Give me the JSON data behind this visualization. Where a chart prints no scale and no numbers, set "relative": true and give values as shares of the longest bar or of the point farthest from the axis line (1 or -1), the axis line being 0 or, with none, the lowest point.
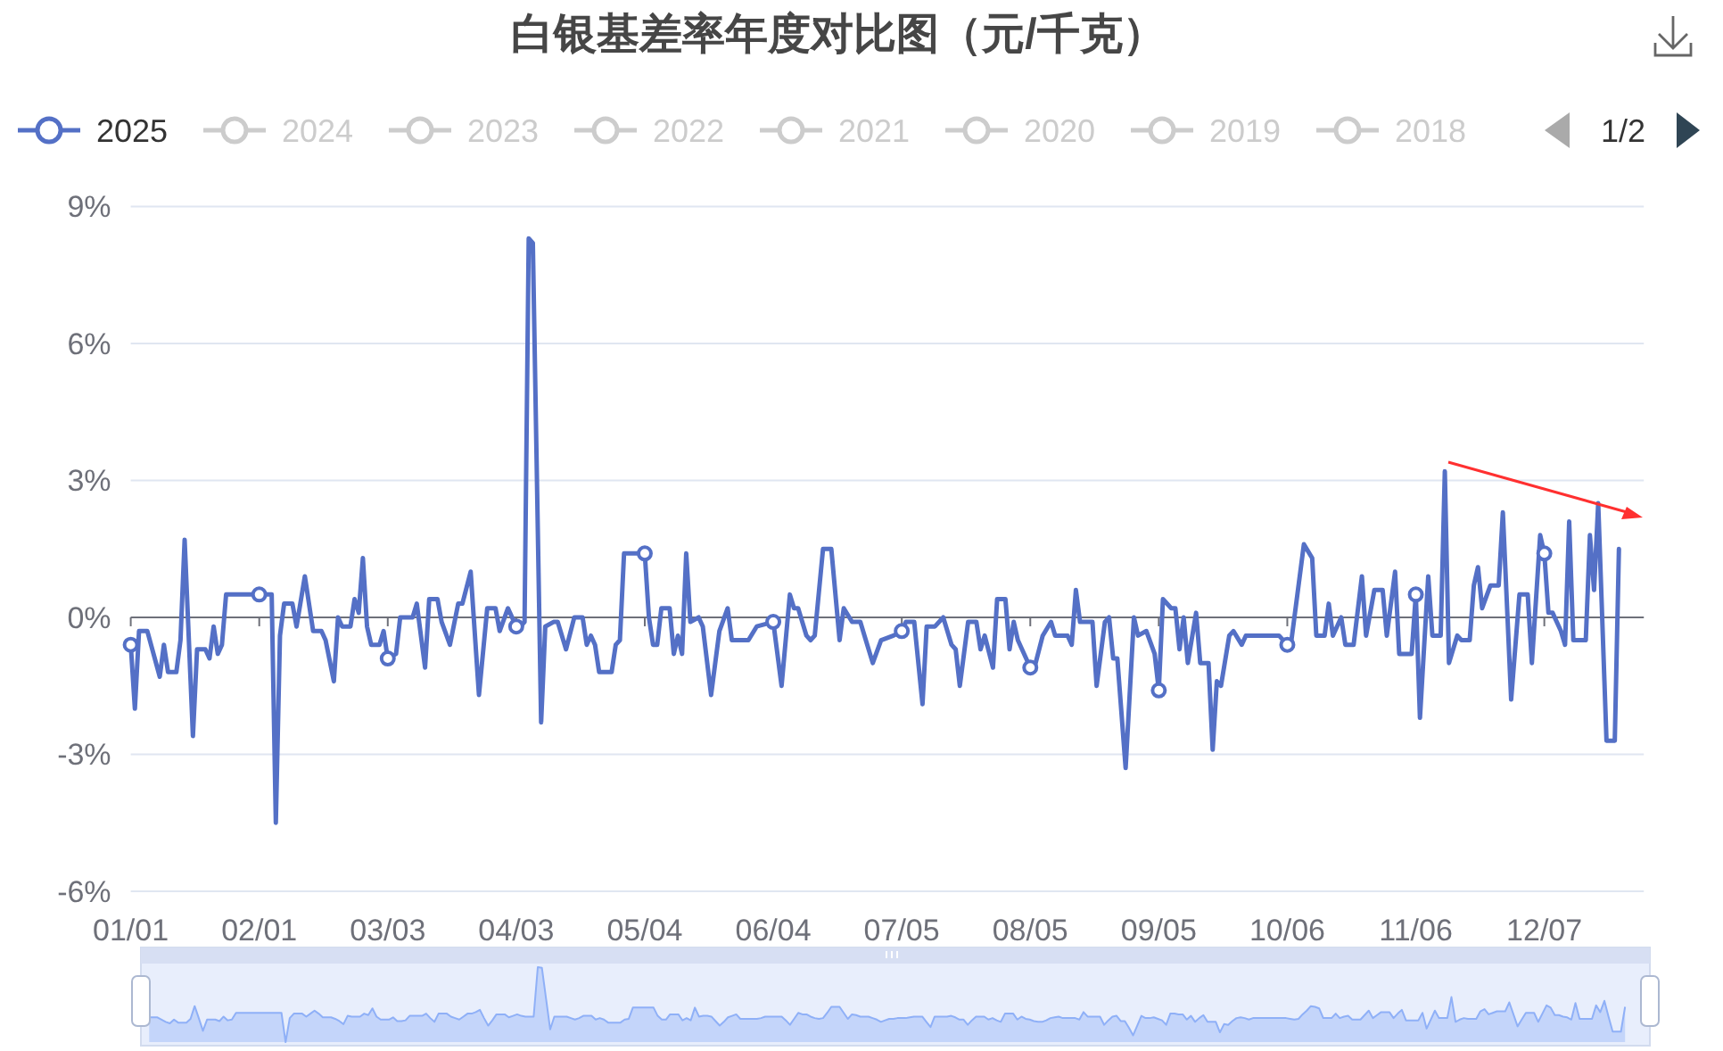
{
  "chart_data": [
    {
      "type": "line",
      "title": "白银基差率年度对比图（元/千克）",
      "xlim": [
        "--01-01",
        "--12-31"
      ],
      "xticks": [
        {
          "value": "--01-01",
          "label": "01/01"
        },
        {
          "value": "--02-01",
          "label": "02/01"
        },
        {
          "value": "--03-03",
          "label": "03/03"
        },
        {
          "value": "--04-03",
          "label": "04/03"
        },
        {
          "value": "--05-04",
          "label": "05/04"
        },
        {
          "value": "--06-04",
          "label": "06/04"
        },
        {
          "value": "--07-05",
          "label": "07/05"
        },
        {
          "value": "--08-05",
          "label": "08/05"
        },
        {
          "value": "--09-05",
          "label": "09/05"
        },
        {
          "value": "--10-06",
          "label": "10/06"
        },
        {
          "value": "--11-06",
          "label": "11/06"
        },
        {
          "value": "--12-07",
          "label": "12/07"
        }
      ],
      "ylim": [
        -6,
        9
      ],
      "yticks": [
        {
          "value": -6,
          "label": "-6%"
        },
        {
          "value": -3,
          "label": "-3%"
        },
        {
          "value": 0,
          "label": "0%"
        },
        {
          "value": 3,
          "label": "3%"
        },
        {
          "value": 6,
          "label": "6%"
        },
        {
          "value": 9,
          "label": "9%"
        }
      ],
      "grid": "y",
      "legend": "top",
      "marker": "circle",
      "series": [
        {
          "name": "2025",
          "color": "#5470c6",
          "marker": "none",
          "x": [
            "--01-01",
            "--01-02",
            "--01-03",
            "--01-05",
            "--01-08",
            "--01-09",
            "--01-10",
            "--01-12",
            "--01-13",
            "--01-14",
            "--01-16",
            "--01-17",
            "--01-19",
            "--01-20",
            "--01-21",
            "--01-22",
            "--01-23",
            "--01-24",
            "--02-01",
            "--02-04",
            "--02-05",
            "--02-06",
            "--02-07",
            "--02-09",
            "--02-10",
            "--02-12",
            "--02-14",
            "--02-16",
            "--02-17",
            "--02-19",
            "--02-20",
            "--02-21",
            "--02-23",
            "--02-24",
            "--02-25",
            "--02-26",
            "--02-27",
            "--02-28",
            "--03-01",
            "--03-02",
            "--03-03",
            "--03-05",
            "--03-06",
            "--03-09",
            "--03-10",
            "--03-12",
            "--03-13",
            "--03-15",
            "--03-16",
            "--03-18",
            "--03-20",
            "--03-21",
            "--03-23",
            "--03-25",
            "--03-27",
            "--03-29",
            "--03-30",
            "--04-01",
            "--04-03",
            "--04-04",
            "--04-05",
            "--04-06",
            "--04-07",
            "--04-09",
            "--04-10",
            "--04-12",
            "--04-13",
            "--04-15",
            "--04-17",
            "--04-19",
            "--04-20",
            "--04-21",
            "--04-22",
            "--04-23",
            "--04-26",
            "--04-27",
            "--04-28",
            "--04-29",
            "--05-02",
            "--05-04",
            "--05-05",
            "--05-06",
            "--05-07",
            "--05-08",
            "--05-10",
            "--05-11",
            "--05-12",
            "--05-13",
            "--05-14",
            "--05-15",
            "--05-17",
            "--05-18",
            "--05-20",
            "--05-22",
            "--05-24",
            "--05-25",
            "--05-29",
            "--05-31",
            "--06-04",
            "--06-06",
            "--06-08",
            "--06-09",
            "--06-10",
            "--06-12",
            "--06-13",
            "--06-14",
            "--06-16",
            "--06-18",
            "--06-20",
            "--06-21",
            "--06-23",
            "--06-25",
            "--06-26",
            "--06-28",
            "--06-30",
            "--07-03",
            "--07-05",
            "--07-06",
            "--07-08",
            "--07-10",
            "--07-11",
            "--07-13",
            "--07-15",
            "--07-17",
            "--07-18",
            "--07-19",
            "--07-21",
            "--07-23",
            "--07-24",
            "--07-25",
            "--07-27",
            "--07-28",
            "--07-30",
            "--07-31",
            "--08-01",
            "--08-02",
            "--08-05",
            "--08-06",
            "--08-08",
            "--08-10",
            "--08-11",
            "--08-14",
            "--08-15",
            "--08-16",
            "--08-17",
            "--08-20",
            "--08-21",
            "--08-23",
            "--08-24",
            "--08-25",
            "--08-26",
            "--08-28",
            "--08-30",
            "--08-31",
            "--09-02",
            "--09-04",
            "--09-05",
            "--09-06",
            "--09-08",
            "--09-09",
            "--09-10",
            "--09-11",
            "--09-12",
            "--09-14",
            "--09-15",
            "--09-17",
            "--09-18",
            "--09-19",
            "--09-20",
            "--09-22",
            "--09-23",
            "--09-25",
            "--09-26",
            "--10-04",
            "--10-06",
            "--10-07",
            "--10-10",
            "--10-12",
            "--10-13",
            "--10-15",
            "--10-16",
            "--10-17",
            "--10-19",
            "--10-20",
            "--10-22",
            "--10-24",
            "--10-25",
            "--10-27",
            "--10-29",
            "--10-30",
            "--11-01",
            "--11-02",
            "--11-05",
            "--11-06",
            "--11-07",
            "--11-09",
            "--11-10",
            "--11-12",
            "--11-13",
            "--11-14",
            "--11-16",
            "--11-17",
            "--11-19",
            "--11-20",
            "--11-21",
            "--11-22",
            "--11-24",
            "--11-26",
            "--11-27",
            "--11-29",
            "--12-01",
            "--12-03",
            "--12-04",
            "--12-06",
            "--12-07",
            "--12-08",
            "--12-09",
            "--12-11",
            "--12-12",
            "--12-13",
            "--12-14",
            "--12-17",
            "--12-18",
            "--12-19",
            "--12-20",
            "--12-22",
            "--12-24",
            "--12-25"
          ],
          "values": [
            -0.6,
            -2.0,
            -0.3,
            -0.3,
            -1.3,
            -0.6,
            -1.2,
            -1.2,
            -0.5,
            1.7,
            -2.6,
            -0.7,
            -0.7,
            -0.9,
            -0.2,
            -0.8,
            -0.6,
            0.5,
            0.5,
            0.5,
            -4.5,
            -0.4,
            0.3,
            0.3,
            -0.2,
            0.9,
            -0.3,
            -0.3,
            -0.5,
            -1.4,
            0.0,
            -0.2,
            -0.2,
            0.4,
            0.1,
            1.3,
            -0.2,
            -0.6,
            -0.6,
            -0.3,
            -0.9,
            -0.8,
            0.0,
            0.0,
            0.3,
            -1.1,
            0.4,
            0.4,
            -0.1,
            -0.6,
            0.3,
            0.3,
            1.0,
            -1.7,
            0.2,
            0.2,
            -0.3,
            0.2,
            -0.2,
            -0.2,
            -0.1,
            8.3,
            8.2,
            -2.3,
            -0.2,
            -0.1,
            -0.1,
            -0.7,
            0.0,
            0.0,
            -0.6,
            -0.4,
            -0.6,
            -1.2,
            -1.2,
            -0.6,
            -0.5,
            1.4,
            1.4,
            1.4,
            0.0,
            -0.6,
            -0.6,
            0.2,
            0.2,
            -0.8,
            -0.4,
            -0.8,
            1.4,
            -0.1,
            0.0,
            -0.2,
            -1.7,
            -0.3,
            0.2,
            -0.5,
            -0.5,
            -0.2,
            -0.1,
            -1.5,
            0.5,
            0.2,
            0.2,
            -0.4,
            -0.5,
            -0.4,
            1.5,
            1.5,
            -0.5,
            0.2,
            -0.1,
            -0.1,
            -0.4,
            -1.0,
            -0.5,
            -0.4,
            -0.3,
            -0.1,
            -0.1,
            -1.9,
            -0.2,
            -0.2,
            0.0,
            -0.6,
            -0.7,
            -1.5,
            -0.1,
            -0.1,
            -0.7,
            -0.4,
            -1.1,
            0.4,
            0.4,
            -0.7,
            -0.1,
            -0.5,
            -1.1,
            -1.1,
            -0.4,
            -0.1,
            -0.4,
            -0.4,
            -0.6,
            0.6,
            -0.1,
            -0.1,
            -1.5,
            -0.1,
            0.0,
            -0.9,
            -0.9,
            -3.3,
            0.0,
            -0.4,
            -0.3,
            -0.8,
            -1.6,
            0.4,
            0.2,
            0.2,
            -0.7,
            0.0,
            -1.0,
            0.1,
            -1.0,
            -1.0,
            -2.9,
            -1.4,
            -1.5,
            -0.4,
            -0.3,
            -0.6,
            -0.4,
            -0.4,
            -0.6,
            -0.5,
            1.6,
            1.3,
            -0.4,
            -0.4,
            0.3,
            -0.4,
            0.0,
            -0.6,
            -0.6,
            0.9,
            -0.4,
            0.6,
            0.6,
            -0.4,
            1.0,
            -0.8,
            -0.8,
            0.5,
            -2.2,
            0.9,
            -0.4,
            -0.4,
            3.2,
            -1.0,
            -0.4,
            -0.5,
            -0.5,
            0.7,
            1.1,
            0.2,
            0.7,
            0.7,
            2.3,
            -1.8,
            0.5,
            0.5,
            -1.0,
            1.8,
            1.4,
            0.1,
            0.1,
            -0.3,
            -0.6,
            2.1,
            -0.5,
            -0.5,
            1.8,
            0.6,
            2.5,
            -2.7,
            -2.7,
            1.5
          ]
        },
        {
          "type": "scatter",
          "color": "#5470c6",
          "x": [
            "--01-01",
            "--02-01",
            "--03-03",
            "--04-03",
            "--05-04",
            "--06-04",
            "--07-05",
            "--08-05",
            "--09-05",
            "--10-06",
            "--11-06",
            "--12-07"
          ],
          "values": [
            -0.6,
            0.5,
            -0.9,
            -0.2,
            1.4,
            -0.1,
            -0.3,
            -1.1,
            -1.6,
            -0.6,
            0.5,
            1.4
          ]
        },
        {
          "name": "2024",
          "color": "#cccccc"
        },
        {
          "name": "2023",
          "color": "#cccccc"
        },
        {
          "name": "2022",
          "color": "#cccccc"
        },
        {
          "name": "2021",
          "color": "#cccccc"
        },
        {
          "name": "2020",
          "color": "#cccccc"
        },
        {
          "name": "2019",
          "color": "#cccccc"
        },
        {
          "name": "2018",
          "color": "#cccccc"
        }
      ],
      "annotations": [
        "1/2"
      ]
    },
    {
      "type": "area",
      "relative": true,
      "color": "#8fb0f7",
      "categories": [
        null,
        null,
        null,
        null,
        null,
        null,
        null,
        null,
        null,
        null,
        null,
        null,
        null,
        null,
        null,
        null,
        null,
        null,
        null,
        null,
        null,
        null,
        null,
        null,
        null,
        null,
        null,
        null,
        null,
        null,
        null,
        null,
        null,
        null,
        null,
        null,
        null,
        null,
        null,
        null,
        null,
        null,
        null,
        null,
        null,
        null,
        null,
        null,
        null,
        null,
        null,
        null,
        null,
        null,
        null,
        null,
        null,
        null,
        null,
        null,
        null,
        null,
        null,
        null,
        null,
        null,
        null,
        null,
        null,
        null,
        null,
        null,
        null,
        null,
        null,
        null,
        null,
        null,
        null,
        null,
        null,
        null,
        null,
        null,
        null,
        null,
        null,
        null,
        null,
        null,
        null,
        null,
        null,
        null,
        null,
        null,
        null,
        null,
        null,
        null,
        null,
        null,
        null,
        null,
        null,
        null,
        null,
        null,
        null,
        null,
        null,
        null,
        null,
        null,
        null,
        null,
        null,
        null,
        null,
        null,
        null,
        null,
        null,
        null,
        null,
        null,
        null,
        null,
        null,
        null,
        null,
        null,
        null,
        null,
        null,
        null,
        null,
        null,
        null,
        null,
        null,
        null,
        null,
        null,
        null,
        null,
        null,
        null,
        null,
        null,
        null,
        null,
        null,
        null,
        null,
        null,
        null,
        null,
        null,
        null,
        null,
        null,
        null,
        null,
        null,
        null,
        null,
        null,
        null,
        null,
        null,
        null,
        null,
        null,
        null,
        null,
        null,
        null,
        null,
        null,
        null,
        null,
        null,
        null,
        null,
        null,
        null,
        null,
        null,
        null,
        null,
        null,
        null,
        null,
        null,
        null,
        null,
        null,
        null,
        null,
        null,
        null,
        null,
        null,
        null,
        null,
        null,
        null,
        null,
        null,
        null,
        null,
        null,
        null,
        null,
        null,
        null,
        null,
        null,
        null,
        null,
        null,
        null,
        null,
        null,
        null,
        null,
        null,
        null,
        null,
        null,
        null,
        null,
        null,
        null,
        null,
        null,
        null,
        null,
        null,
        null,
        null,
        null,
        null,
        null,
        null,
        null,
        null,
        null,
        null,
        null,
        null,
        null,
        null,
        null,
        null,
        null,
        null,
        null,
        null,
        null,
        null,
        null,
        null,
        null,
        null,
        null,
        null,
        null,
        null,
        null,
        null,
        null,
        null,
        null,
        null,
        null,
        null,
        null,
        null,
        null,
        null,
        null,
        null,
        null,
        null,
        null,
        null,
        null,
        null,
        null,
        null,
        null,
        null,
        null,
        null,
        null,
        null,
        null,
        null,
        null,
        null,
        null,
        null,
        null,
        null,
        null,
        null,
        null,
        null,
        null,
        null,
        null,
        null,
        null,
        null,
        null,
        null,
        null,
        null,
        null,
        null,
        null,
        null,
        null,
        null,
        null,
        null,
        null,
        null,
        null,
        null,
        null,
        null,
        null,
        null,
        null,
        null,
        null,
        null,
        null,
        null,
        null,
        null,
        null,
        null,
        null,
        null,
        null,
        null,
        null,
        null,
        null,
        null,
        null,
        null,
        null,
        null,
        null,
        null,
        null,
        null,
        null,
        null,
        null,
        null
      ],
      "values": [
        null,
        null,
        0.33,
        0.33,
        0.33,
        0.3,
        0.27,
        0.25,
        0.3,
        0.26,
        0.26,
        0.26,
        0.31,
        0.48,
        0.32,
        0.15,
        0.3,
        0.3,
        0.3,
        0.28,
        0.34,
        0.29,
        0.3,
        0.39,
        0.39,
        0.39,
        0.39,
        0.39,
        0.39,
        0.39,
        0.39,
        0.39,
        0.39,
        0.39,
        0.39,
        0.0,
        0.32,
        0.38,
        0.38,
        0.38,
        0.34,
        0.38,
        0.42,
        0.38,
        0.33,
        0.33,
        0.33,
        0.31,
        0.28,
        0.24,
        0.35,
        0.34,
        0.34,
        0.34,
        0.38,
        0.36,
        0.45,
        0.34,
        0.3,
        0.3,
        0.3,
        0.33,
        0.28,
        0.28,
        0.29,
        0.35,
        0.35,
        0.35,
        0.35,
        0.38,
        0.32,
        0.27,
        0.38,
        0.38,
        0.38,
        0.34,
        0.32,
        0.3,
        0.34,
        0.38,
        0.38,
        0.4,
        0.43,
        0.32,
        0.22,
        0.29,
        0.37,
        0.37,
        0.37,
        0.33,
        0.35,
        0.37,
        0.35,
        0.34,
        0.34,
        0.34,
        1.0,
        0.99,
        0.58,
        0.17,
        0.34,
        0.34,
        0.34,
        0.34,
        0.32,
        0.3,
        0.32,
        0.35,
        0.35,
        0.35,
        0.3,
        0.32,
        0.3,
        0.26,
        0.26,
        0.26,
        0.26,
        0.3,
        0.31,
        0.46,
        0.46,
        0.46,
        0.46,
        0.46,
        0.46,
        0.35,
        0.3,
        0.3,
        0.37,
        0.37,
        0.37,
        0.29,
        0.32,
        0.29,
        0.46,
        0.34,
        0.35,
        0.35,
        0.34,
        0.28,
        0.22,
        0.27,
        0.33,
        0.35,
        0.37,
        0.31,
        0.31,
        0.31,
        0.31,
        0.31,
        0.32,
        0.34,
        0.34,
        0.34,
        0.34,
        0.34,
        0.29,
        0.23,
        0.31,
        0.39,
        0.37,
        0.37,
        0.34,
        0.32,
        0.31,
        0.32,
        0.39,
        0.47,
        0.47,
        0.47,
        0.39,
        0.31,
        0.37,
        0.36,
        0.34,
        0.34,
        0.34,
        0.32,
        0.3,
        0.27,
        0.29,
        0.31,
        0.31,
        0.32,
        0.32,
        0.32,
        0.33,
        0.34,
        0.34,
        0.34,
        0.27,
        0.2,
        0.34,
        0.34,
        0.34,
        0.34,
        0.35,
        0.33,
        0.3,
        0.3,
        0.23,
        0.29,
        0.34,
        0.34,
        0.34,
        0.3,
        0.32,
        0.29,
        0.27,
        0.38,
        0.38,
        0.38,
        0.3,
        0.34,
        0.31,
        0.3,
        0.28,
        0.27,
        0.27,
        0.29,
        0.32,
        0.33,
        0.34,
        0.32,
        0.32,
        0.32,
        0.32,
        0.3,
        0.4,
        0.34,
        0.34,
        0.34,
        0.34,
        0.23,
        0.29,
        0.34,
        0.35,
        0.28,
        0.28,
        0.19,
        0.09,
        0.22,
        0.35,
        0.32,
        0.32,
        0.33,
        0.31,
        0.29,
        0.23,
        0.38,
        0.38,
        0.37,
        0.37,
        0.3,
        0.35,
        0.27,
        0.32,
        0.36,
        0.27,
        0.27,
        0.27,
        0.13,
        0.24,
        0.23,
        0.28,
        0.32,
        0.33,
        0.32,
        0.3,
        0.32,
        0.32,
        0.32,
        0.32,
        0.32,
        0.32,
        0.32,
        0.32,
        0.32,
        0.31,
        0.3,
        0.31,
        0.37,
        0.42,
        0.48,
        0.47,
        0.45,
        0.32,
        0.32,
        0.32,
        0.38,
        0.32,
        0.34,
        0.35,
        0.3,
        0.3,
        0.3,
        0.36,
        0.42,
        0.32,
        0.36,
        0.4,
        0.4,
        0.4,
        0.32,
        0.38,
        0.43,
        0.29,
        0.29,
        0.29,
        0.29,
        0.39,
        0.18,
        0.3,
        0.42,
        0.32,
        0.32,
        0.32,
        0.6,
        0.27,
        0.3,
        0.32,
        0.31,
        0.31,
        0.31,
        0.41,
        0.44,
        0.37,
        0.39,
        0.41,
        0.41,
        0.41,
        0.53,
        0.37,
        0.21,
        0.3,
        0.39,
        0.39,
        0.39,
        0.27,
        0.38,
        0.49,
        0.46,
        0.36,
        0.36,
        0.34,
        0.33,
        0.3,
        0.52,
        0.31,
        0.31,
        0.31,
        0.31,
        0.49,
        0.4,
        0.55,
        0.34,
        0.14,
        0.14,
        0.14,
        0.47,
        null,
        null,
        null,
        null,
        null,
        null
      ]
    }
  ]
}
